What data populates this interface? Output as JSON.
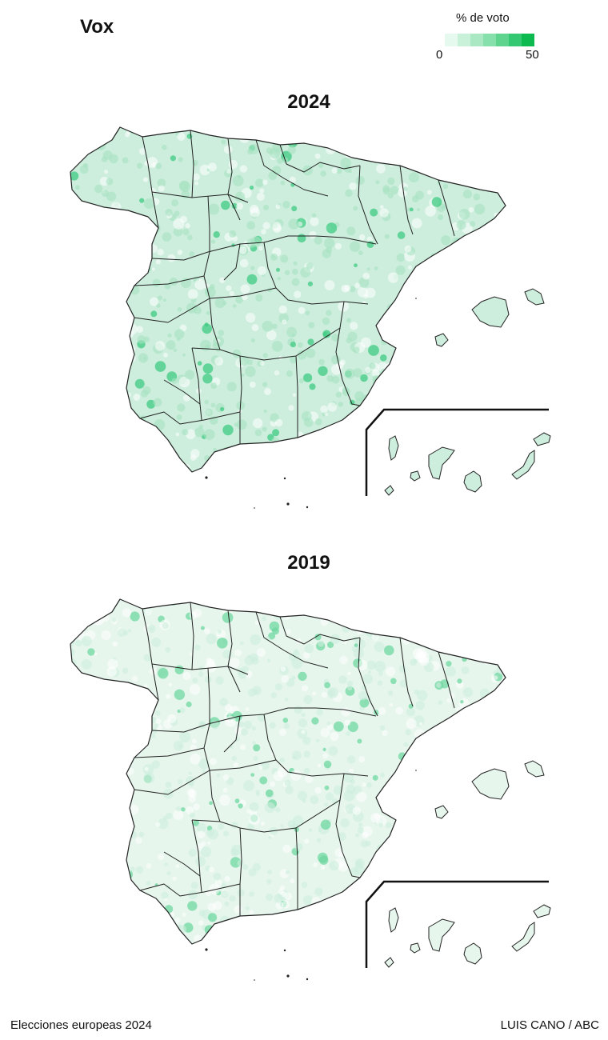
{
  "title": "Vox",
  "legend": {
    "title": "% de voto",
    "min": "0",
    "max": "50",
    "colors": [
      "#e6f9ee",
      "#c9f0d9",
      "#aae8c4",
      "#86e0ab",
      "#5fd48f",
      "#33c871",
      "#0cba50"
    ]
  },
  "maps": [
    {
      "title": "2024",
      "base_color": "#cdeedd",
      "mid_color": "#a6e2c2",
      "accent_color": "#3fcb82"
    },
    {
      "title": "2019",
      "base_color": "#e6f6ed",
      "mid_color": "#cdeedd",
      "accent_color": "#6fd7a0"
    }
  ],
  "footer": {
    "left": "Elecciones europeas 2024",
    "right": "LUIS CANO / ABC"
  }
}
